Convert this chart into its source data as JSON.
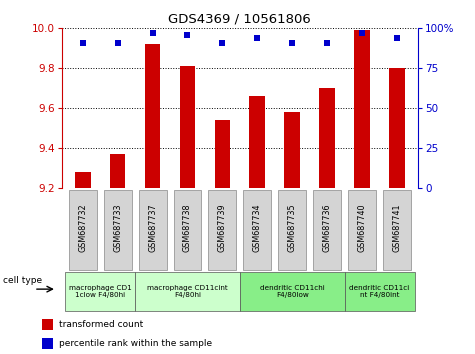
{
  "title": "GDS4369 / 10561806",
  "samples": [
    "GSM687732",
    "GSM687733",
    "GSM687737",
    "GSM687738",
    "GSM687739",
    "GSM687734",
    "GSM687735",
    "GSM687736",
    "GSM687740",
    "GSM687741"
  ],
  "bar_values": [
    9.28,
    9.37,
    9.92,
    9.81,
    9.54,
    9.66,
    9.58,
    9.7,
    9.99,
    9.8
  ],
  "dot_values": [
    91,
    91,
    97,
    96,
    91,
    94,
    91,
    91,
    97,
    94
  ],
  "ylim": [
    9.2,
    10.0
  ],
  "y2lim": [
    0,
    100
  ],
  "yticks": [
    9.2,
    9.4,
    9.6,
    9.8,
    10.0
  ],
  "y2ticks": [
    0,
    25,
    50,
    75,
    100
  ],
  "bar_color": "#cc0000",
  "dot_color": "#0000cc",
  "cell_type_groups": [
    {
      "label": "macrophage CD1\n1clow F4/80hi",
      "start": 0,
      "end": 2,
      "color": "#ccffcc"
    },
    {
      "label": "macrophage CD11cint\nF4/80hi",
      "start": 2,
      "end": 5,
      "color": "#ccffcc"
    },
    {
      "label": "dendritic CD11chi\nF4/80low",
      "start": 5,
      "end": 8,
      "color": "#88ee88"
    },
    {
      "label": "dendritic CD11ci\nnt F4/80int",
      "start": 8,
      "end": 10,
      "color": "#88ee88"
    }
  ],
  "legend_bar_label": "transformed count",
  "legend_dot_label": "percentile rank within the sample",
  "cell_type_label": "cell type",
  "sample_bg_color": "#d4d4d4",
  "group1_color": "#ccffcc",
  "group2_color": "#66dd66"
}
